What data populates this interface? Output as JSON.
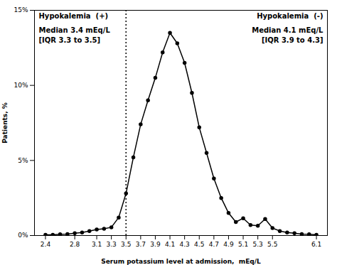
{
  "chart_data": {
    "type": "line",
    "xlabel": "Serum potassium level at admission,  mEq/L",
    "ylabel": "Patients, %",
    "x": [
      2.4,
      2.5,
      2.6,
      2.7,
      2.8,
      2.9,
      3.0,
      3.1,
      3.2,
      3.3,
      3.4,
      3.5,
      3.6,
      3.7,
      3.8,
      3.9,
      4.0,
      4.1,
      4.2,
      4.3,
      4.4,
      4.5,
      4.6,
      4.7,
      4.8,
      4.9,
      5.0,
      5.1,
      5.2,
      5.3,
      5.4,
      5.5,
      5.6,
      5.7,
      5.8,
      5.9,
      6.0,
      6.1
    ],
    "values": [
      0.05,
      0.05,
      0.08,
      0.1,
      0.15,
      0.2,
      0.3,
      0.4,
      0.45,
      0.55,
      1.2,
      2.8,
      5.2,
      7.4,
      9.0,
      10.5,
      12.2,
      13.5,
      12.8,
      11.5,
      9.5,
      7.2,
      5.5,
      3.8,
      2.5,
      1.5,
      0.9,
      1.15,
      0.7,
      0.65,
      1.1,
      0.5,
      0.3,
      0.2,
      0.15,
      0.1,
      0.08,
      0.05
    ],
    "color": "#000000",
    "marker": "circle",
    "xlim": [
      2.25,
      6.25
    ],
    "xticks": [
      2.4,
      2.8,
      3.1,
      3.3,
      3.5,
      3.7,
      3.9,
      4.1,
      4.3,
      4.5,
      4.7,
      4.9,
      5.1,
      5.3,
      5.5,
      6.1
    ],
    "ylim": [
      0,
      15
    ],
    "yticks": [
      {
        "value": 0,
        "label": "0%"
      },
      {
        "value": 5,
        "label": "5%"
      },
      {
        "value": 10,
        "label": "10%"
      },
      {
        "value": 15,
        "label": "15%"
      }
    ],
    "vline_x": 3.5,
    "annotations": [
      {
        "title": "Hypokalemia  (+)",
        "text": "Median 3.4 mEq/L\n[IQR 3.3 to 3.5]"
      },
      {
        "title": "Hypokalemia  (-)",
        "text": "Median 4.1 mEq/L\n[IQR 3.9 to 4.3]"
      }
    ]
  }
}
